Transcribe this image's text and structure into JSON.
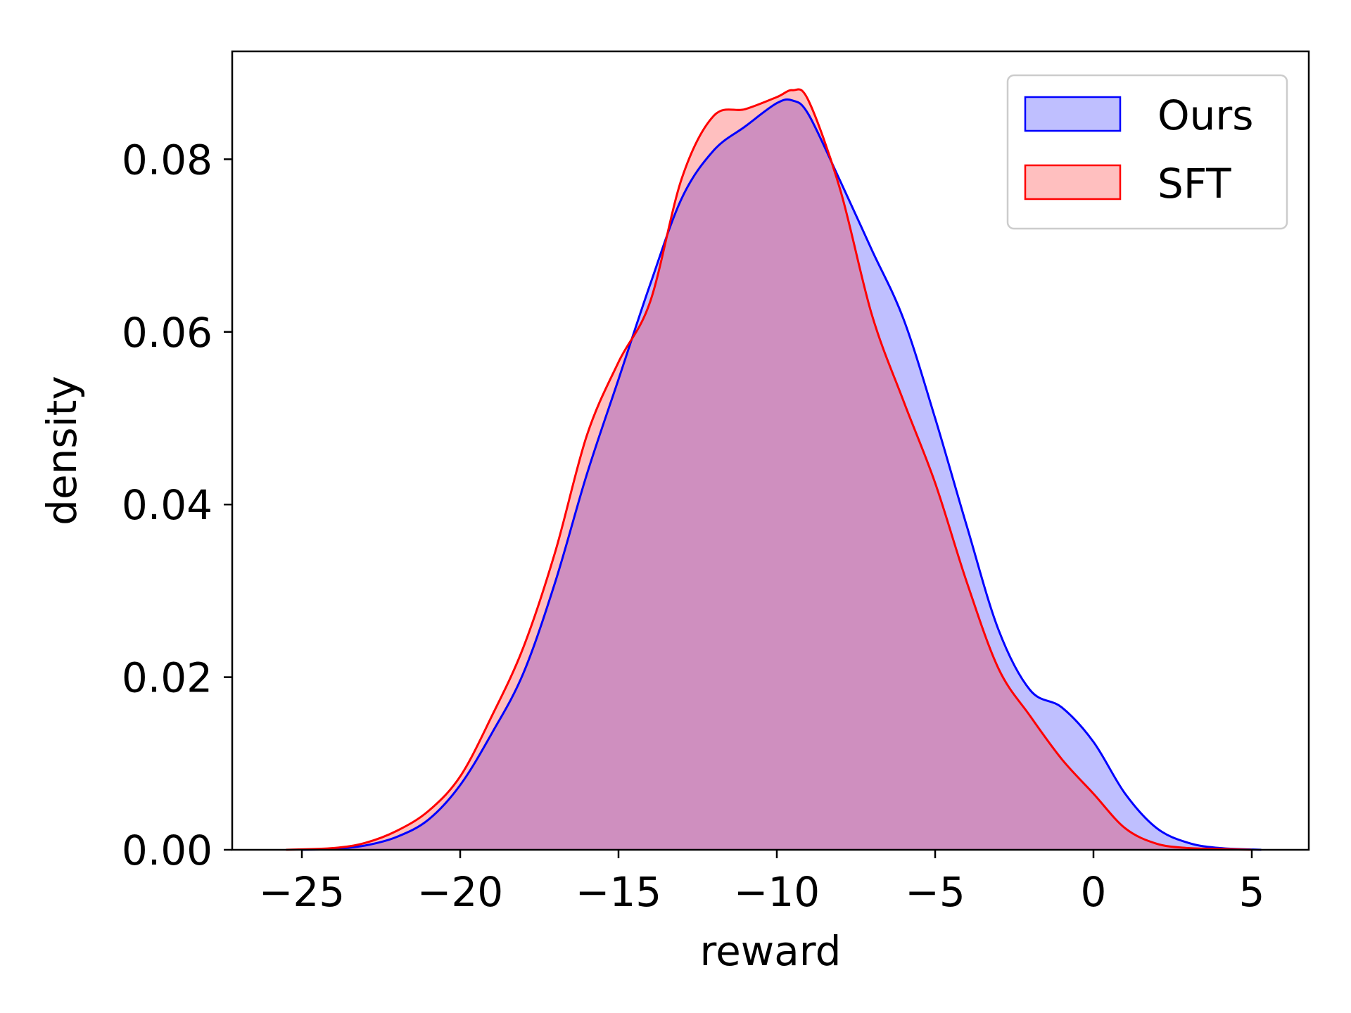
{
  "chart_data": {
    "type": "area",
    "title": "",
    "xlabel": "reward",
    "ylabel": "density",
    "xlim": [
      -27.2,
      6.8
    ],
    "ylim": [
      0,
      0.0925
    ],
    "xticks": [
      -25,
      -20,
      -15,
      -10,
      -5,
      0,
      5
    ],
    "xtick_labels": [
      "−25",
      "−20",
      "−15",
      "−10",
      "−5",
      "0",
      "5"
    ],
    "yticks": [
      0,
      0.02,
      0.04,
      0.06,
      0.08
    ],
    "ytick_labels": [
      "0.00",
      "0.02",
      "0.04",
      "0.06",
      "0.08"
    ],
    "grid": false,
    "legend_position": "top-right",
    "series": [
      {
        "name": "Ours",
        "line_color": "#0000ff",
        "fill_color": "#0000ff",
        "fill_opacity": 0.25,
        "x": [
          -25.0,
          -24.0,
          -23.0,
          -22.0,
          -21.0,
          -20.0,
          -19.0,
          -18.0,
          -17.0,
          -16.0,
          -15.0,
          -14.0,
          -13.0,
          -12.0,
          -11.0,
          -10.0,
          -9.5,
          -9.0,
          -8.0,
          -7.0,
          -6.0,
          -5.0,
          -4.0,
          -3.0,
          -2.0,
          -1.0,
          0.0,
          1.0,
          2.0,
          3.0,
          4.0,
          5.3
        ],
        "y": [
          0.0,
          0.0001,
          0.0005,
          0.0015,
          0.0035,
          0.0075,
          0.0135,
          0.0205,
          0.031,
          0.0435,
          0.0545,
          0.0655,
          0.0755,
          0.081,
          0.0838,
          0.0865,
          0.0868,
          0.0852,
          0.0775,
          0.0695,
          0.0615,
          0.05,
          0.0375,
          0.0255,
          0.0185,
          0.0165,
          0.0125,
          0.0065,
          0.0025,
          0.0008,
          0.0002,
          0.0
        ]
      },
      {
        "name": "SFT",
        "line_color": "#ff0000",
        "fill_color": "#ff0000",
        "fill_opacity": 0.25,
        "x": [
          -25.5,
          -24.0,
          -23.0,
          -22.0,
          -21.0,
          -20.0,
          -19.0,
          -18.0,
          -17.0,
          -16.0,
          -15.0,
          -14.0,
          -13.0,
          -12.0,
          -11.0,
          -10.0,
          -9.5,
          -9.0,
          -8.0,
          -7.0,
          -6.0,
          -5.0,
          -4.0,
          -3.0,
          -2.0,
          -1.0,
          0.0,
          1.0,
          2.0,
          3.0,
          4.0,
          5.0
        ],
        "y": [
          0.0,
          0.0002,
          0.0008,
          0.0022,
          0.0045,
          0.0085,
          0.0155,
          0.0235,
          0.0345,
          0.048,
          0.0565,
          0.0635,
          0.0778,
          0.085,
          0.0858,
          0.0872,
          0.088,
          0.0868,
          0.0765,
          0.062,
          0.052,
          0.0425,
          0.031,
          0.021,
          0.0155,
          0.0105,
          0.0065,
          0.0025,
          0.0007,
          0.0002,
          0.0001,
          0.0
        ]
      }
    ]
  }
}
